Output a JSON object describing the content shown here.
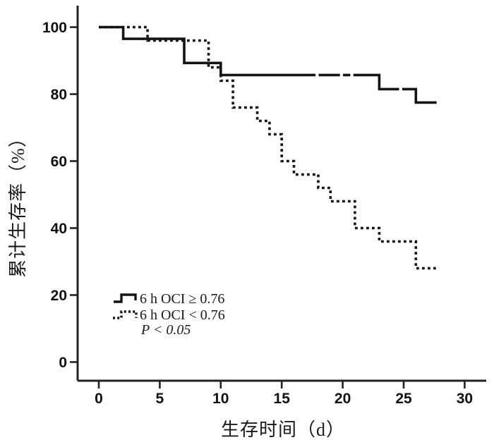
{
  "figure": {
    "background_color": "#ffffff",
    "ink_color": "#141414"
  },
  "chart_data": {
    "type": "line",
    "subtype": "kaplan-meier-step",
    "title": "",
    "xlabel": "生存时间（d）",
    "ylabel": "累计生存率（%）",
    "xlim": [
      0,
      30
    ],
    "ylim": [
      0,
      100
    ],
    "xticks": [
      0,
      5,
      10,
      15,
      20,
      25,
      30
    ],
    "yticks": [
      0,
      20,
      40,
      60,
      80,
      100
    ],
    "grid": false,
    "legend_position": "lower-left-inside",
    "annotation": "P < 0.05",
    "series": [
      {
        "name": "6 h OCI ≥ 0.76",
        "style": "solid",
        "points": [
          [
            0,
            100
          ],
          [
            2,
            100
          ],
          [
            2,
            96.5
          ],
          [
            7,
            96.5
          ],
          [
            7,
            89.3
          ],
          [
            10,
            89.3
          ],
          [
            10,
            85.7
          ],
          [
            23,
            85.7
          ],
          [
            23,
            81.5
          ],
          [
            26,
            81.5
          ],
          [
            26,
            77.5
          ],
          [
            27.7,
            77.5
          ]
        ],
        "censor_gaps": [
          [
            17.9,
            85.7
          ],
          [
            19.9,
            85.7
          ],
          [
            20.75,
            85.7
          ],
          [
            24.75,
            81.5
          ]
        ]
      },
      {
        "name": "6 h OCI < 0.76",
        "style": "dotted",
        "points": [
          [
            0,
            100
          ],
          [
            4,
            100
          ],
          [
            4,
            96
          ],
          [
            9,
            96
          ],
          [
            9,
            88
          ],
          [
            10,
            88
          ],
          [
            10,
            84
          ],
          [
            11,
            84
          ],
          [
            11,
            76
          ],
          [
            13,
            76
          ],
          [
            13,
            72
          ],
          [
            14,
            72
          ],
          [
            14,
            68
          ],
          [
            15,
            68
          ],
          [
            15,
            60
          ],
          [
            16,
            60
          ],
          [
            16,
            56
          ],
          [
            18,
            56
          ],
          [
            18,
            52
          ],
          [
            19,
            52
          ],
          [
            19,
            48
          ],
          [
            21,
            48
          ],
          [
            21,
            40
          ],
          [
            23,
            40
          ],
          [
            23,
            36
          ],
          [
            26,
            36
          ],
          [
            26,
            28
          ],
          [
            27.7,
            28
          ]
        ],
        "censor_gaps": []
      }
    ]
  }
}
